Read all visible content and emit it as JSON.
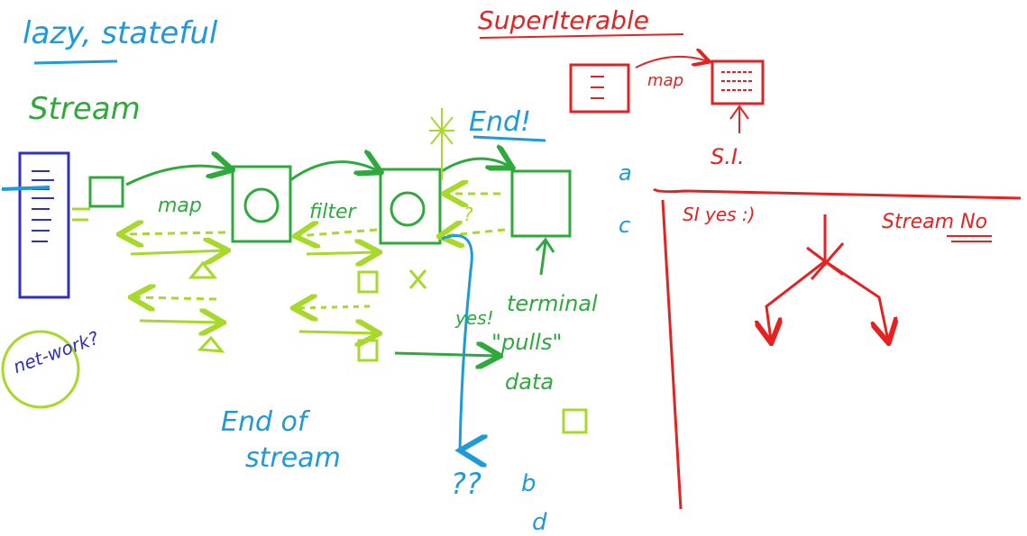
{
  "header": {
    "title": "lazy, stateful"
  },
  "stream": {
    "label": "Stream",
    "end": "End!",
    "stages": [
      "map",
      "filter"
    ],
    "question": "?",
    "network": "net-work?",
    "yes": "yes!",
    "terminal": [
      "terminal",
      "\"pulls\"",
      "data"
    ],
    "end_of_stream": [
      "End of",
      "stream"
    ],
    "unknown": "??"
  },
  "super_iterable": {
    "title": "SuperIterable",
    "map": "map",
    "abbrev": "S.I."
  },
  "comparison": {
    "row_a": "a",
    "row_c": "c",
    "si": "SI yes :)",
    "stream": "Stream No"
  },
  "corner": {
    "b": "b",
    "d": "d"
  }
}
